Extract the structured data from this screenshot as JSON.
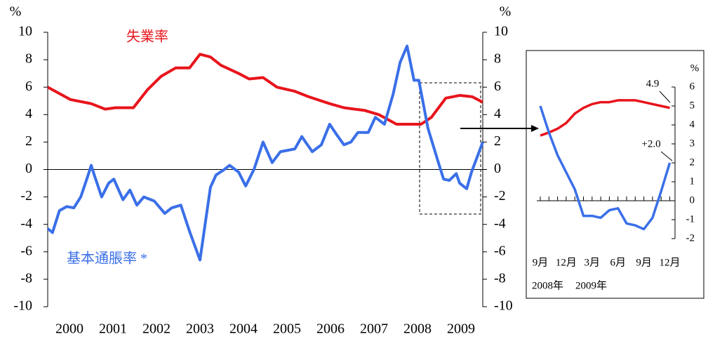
{
  "chart_data": [
    {
      "type": "line",
      "y_label": "%",
      "y2_label": "%",
      "categories": [
        "2000",
        "2001",
        "2002",
        "2003",
        "2004",
        "2005",
        "2006",
        "2007",
        "2008",
        "2009"
      ],
      "xlim": [
        2000,
        2010
      ],
      "ylim": [
        -10,
        10
      ],
      "yticks": [
        -10,
        -8,
        -6,
        -4,
        -2,
        0,
        2,
        4,
        6,
        8,
        10
      ],
      "y2lim": [
        -10,
        10
      ],
      "y2ticks": [
        -10,
        -8,
        -6,
        -4,
        -2,
        0,
        2,
        4,
        6,
        8,
        10
      ],
      "series": [
        {
          "name": "失業率",
          "color": "#e8141b",
          "x": [
            2000,
            2000.52,
            2001,
            2001.32,
            2001.56,
            2001.97,
            2002.29,
            2002.61,
            2002.94,
            2003.26,
            2003.5,
            2003.74,
            2003.98,
            2004.39,
            2004.63,
            2004.95,
            2005.27,
            2005.68,
            2006,
            2006.48,
            2006.81,
            2007.29,
            2007.61,
            2008.02,
            2008.58,
            2008.82,
            2009.15,
            2009.47,
            2009.76,
            2010
          ],
          "values": [
            6.0,
            5.1,
            4.8,
            4.4,
            4.5,
            4.5,
            5.8,
            6.8,
            7.4,
            7.4,
            8.4,
            8.2,
            7.6,
            7.0,
            6.6,
            6.7,
            6.0,
            5.7,
            5.3,
            4.8,
            4.5,
            4.3,
            4.0,
            3.3,
            3.3,
            3.8,
            5.2,
            5.4,
            5.3,
            4.9
          ]
        },
        {
          "name": "基本通脹率 *",
          "color": "#3a6fe8",
          "x": [
            2000,
            2000.11,
            2000.27,
            2000.44,
            2000.6,
            2000.76,
            2000.92,
            2001,
            2001.08,
            2001.24,
            2001.4,
            2001.52,
            2001.73,
            2001.89,
            2002.05,
            2002.21,
            2002.45,
            2002.69,
            2002.85,
            2003.06,
            2003.26,
            2003.5,
            2003.74,
            2003.87,
            2004.06,
            2004.18,
            2004.39,
            2004.55,
            2004.74,
            2004.95,
            2005.16,
            2005.35,
            2005.52,
            2005.68,
            2005.84,
            2006.08,
            2006.29,
            2006.48,
            2006.65,
            2006.81,
            2006.97,
            2007.13,
            2007.37,
            2007.53,
            2007.74,
            2007.94,
            2008.1,
            2008.26,
            2008.42,
            2008.53,
            2008.74,
            2008.98,
            2009.1,
            2009.23,
            2009.39,
            2009.47,
            2009.63,
            2009.74,
            2010
          ],
          "values": [
            -4.3,
            -4.6,
            -3.0,
            -2.7,
            -2.8,
            -2.0,
            -0.5,
            0.3,
            -0.5,
            -2.0,
            -1.0,
            -0.7,
            -2.2,
            -1.5,
            -2.6,
            -2.0,
            -2.3,
            -3.2,
            -2.8,
            -2.6,
            -4.5,
            -6.6,
            -1.3,
            -0.4,
            0.0,
            0.3,
            -0.2,
            -1.2,
            0.0,
            2.0,
            0.5,
            1.3,
            1.4,
            1.5,
            2.4,
            1.3,
            1.8,
            3.3,
            2.5,
            1.8,
            2.0,
            2.7,
            2.7,
            3.8,
            3.3,
            5.5,
            7.8,
            9.0,
            6.5,
            6.5,
            3.0,
            0.5,
            -0.7,
            -0.8,
            -0.3,
            -1.0,
            -1.4,
            -0.2,
            2.0
          ]
        }
      ]
    },
    {
      "type": "line",
      "y_label": "%",
      "categories": [
        "9月",
        null,
        null,
        "12月",
        null,
        null,
        "3月",
        null,
        null,
        "6月",
        null,
        null,
        "9月",
        null,
        null,
        "12月"
      ],
      "year_labels": [
        "2008年",
        "2009年"
      ],
      "y2lim": [
        -2,
        6
      ],
      "y2ticks": [
        -2,
        -1,
        0,
        1,
        2,
        3,
        4,
        5,
        6
      ],
      "annotations": [
        "4.9",
        "+2.0"
      ],
      "series": [
        {
          "color": "#e8141b",
          "values": [
            3.44,
            3.6,
            3.8,
            4.1,
            4.6,
            4.9,
            5.1,
            5.2,
            5.2,
            5.3,
            5.3,
            5.3,
            5.2,
            5.1,
            5.0,
            4.9
          ]
        },
        {
          "color": "#3a6fe8",
          "values": [
            5.0,
            3.6,
            2.4,
            1.5,
            0.6,
            -0.8,
            -0.8,
            -0.9,
            -0.5,
            -0.4,
            -1.2,
            -1.3,
            -1.5,
            -0.9,
            0.5,
            2.0
          ]
        }
      ]
    }
  ]
}
